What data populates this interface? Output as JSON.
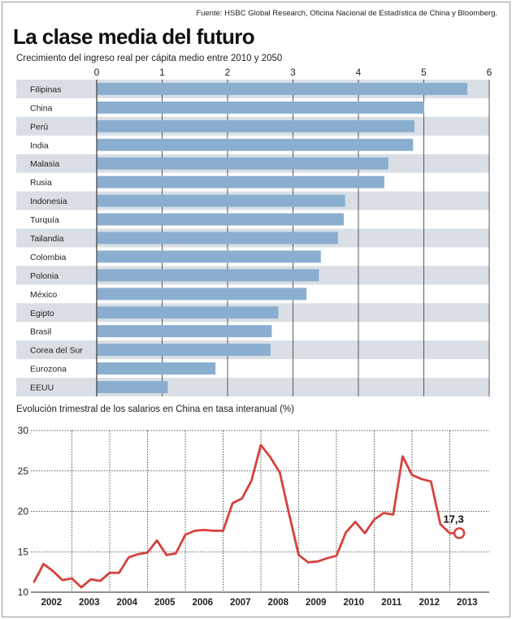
{
  "header": {
    "source": "Fuente: HSBC Global Research, Oficina Nacional de Estadística de China y Bloomberg.",
    "title": "La clase media del futuro"
  },
  "colors": {
    "bar": "#8aaed0",
    "stripe": "#d9dfe4",
    "line": "#d6413c",
    "grid": "#333333"
  },
  "chart_data": [
    {
      "type": "bar",
      "orientation": "horizontal",
      "title": "Crecimiento del ingreso real per cápita medio entre 2010 y 2050",
      "xlim": [
        0,
        6
      ],
      "ticks": [
        "0",
        "1",
        "2",
        "3",
        "4",
        "5",
        "6"
      ],
      "categories": [
        "Filipinas",
        "China",
        "Perú",
        "India",
        "Malasia",
        "Rusia",
        "Indonesia",
        "Turquía",
        "Tailandia",
        "Colombia",
        "Polonia",
        "México",
        "Egipto",
        "Brasil",
        "Corea del Sur",
        "Eurozona",
        "EEUU"
      ],
      "values": [
        5.66,
        5.0,
        4.85,
        4.83,
        4.45,
        4.39,
        3.79,
        3.77,
        3.68,
        3.42,
        3.39,
        3.2,
        2.77,
        2.67,
        2.65,
        1.81,
        1.08
      ],
      "grid": true
    },
    {
      "type": "line",
      "title": "Evolución trimestral de los salarios en China en tasa interanual (%)",
      "ylim": [
        10,
        30
      ],
      "yticks": [
        "30",
        "25",
        "20",
        "15",
        "10"
      ],
      "xticks": [
        "2002",
        "2003",
        "2004",
        "2005",
        "2006",
        "2007",
        "2008",
        "2009",
        "2010",
        "2011",
        "2012",
        "2013"
      ],
      "x": [
        "2002-Q1",
        "2002-Q2",
        "2002-Q3",
        "2002-Q4",
        "2003-Q1",
        "2003-Q2",
        "2003-Q3",
        "2003-Q4",
        "2004-Q1",
        "2004-Q2",
        "2004-Q3",
        "2004-Q4",
        "2005-Q1",
        "2005-Q2",
        "2005-Q3",
        "2005-Q4",
        "2006-Q1",
        "2006-Q2",
        "2006-Q3",
        "2006-Q4",
        "2007-Q1",
        "2007-Q2",
        "2007-Q3",
        "2007-Q4",
        "2008-Q1",
        "2008-Q2",
        "2008-Q3",
        "2008-Q4",
        "2009-Q1",
        "2009-Q2",
        "2009-Q3",
        "2009-Q4",
        "2010-Q1",
        "2010-Q2",
        "2010-Q3",
        "2010-Q4",
        "2011-Q1",
        "2011-Q2",
        "2011-Q3",
        "2011-Q4",
        "2012-Q1",
        "2012-Q2",
        "2012-Q3",
        "2012-Q4",
        "2013-Q1",
        "2013-Q2"
      ],
      "values": [
        11.3,
        13.5,
        12.6,
        11.5,
        11.7,
        10.6,
        11.6,
        11.4,
        12.4,
        12.4,
        14.3,
        14.7,
        14.9,
        16.4,
        14.6,
        14.8,
        17.1,
        17.6,
        17.7,
        17.6,
        17.6,
        21.0,
        21.6,
        23.8,
        28.2,
        26.7,
        24.8,
        19.6,
        14.6,
        13.7,
        13.8,
        14.2,
        14.5,
        17.4,
        18.7,
        17.3,
        19.0,
        19.8,
        19.6,
        26.8,
        24.5,
        24.0,
        23.7,
        18.4,
        17.3,
        17.3
      ],
      "annotation": "17,3",
      "grid": true
    }
  ]
}
